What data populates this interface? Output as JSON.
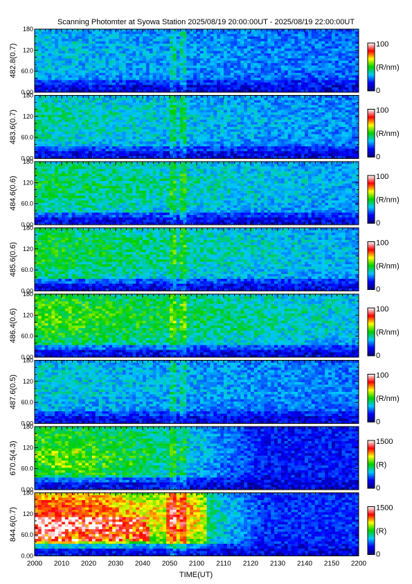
{
  "title": "Scanning Photomter at Syowa Station 2025/08/19 20:00:00UT - 2025/08/19 22:00:00UT",
  "chart_data": {
    "type": "heatmap",
    "xlabel": "TIME(UT)",
    "x_ticks": [
      "2000",
      "2010",
      "2020",
      "2030",
      "2040",
      "2050",
      "2100",
      "2110",
      "2120",
      "2130",
      "2140",
      "2150",
      "2200"
    ],
    "y_ticks": [
      "0.00",
      "60.0",
      "120",
      "180"
    ],
    "ylim": [
      0,
      180
    ],
    "colorscale": [
      "#00007a",
      "#0000ff",
      "#00c8ff",
      "#00d000",
      "#ffff00",
      "#ff0000",
      "#ffffff"
    ],
    "panels": [
      {
        "ylabel": "482.8(0.7)",
        "cbar_max": "100",
        "cbar_min": "0",
        "unit": "(R/nm)",
        "intensity": 0.3
      },
      {
        "ylabel": "483.6(0.7)",
        "cbar_max": "100",
        "cbar_min": "0",
        "unit": "(R/nm)",
        "intensity": 0.38
      },
      {
        "ylabel": "484.6(0.6)",
        "cbar_max": "100",
        "cbar_min": "0",
        "unit": "(R/nm)",
        "intensity": 0.45
      },
      {
        "ylabel": "485.6(0.6)",
        "cbar_max": "100",
        "cbar_min": "0",
        "unit": "(R/nm)",
        "intensity": 0.48
      },
      {
        "ylabel": "486.4(0.6)",
        "cbar_max": "100",
        "cbar_min": "0",
        "unit": "(R/nm)",
        "intensity": 0.55
      },
      {
        "ylabel": "487.6(0.5)",
        "cbar_max": "100",
        "cbar_min": "0",
        "unit": "(R/nm)",
        "intensity": 0.33
      },
      {
        "ylabel": "670.5(4.3)",
        "cbar_max": "1500",
        "cbar_min": "0",
        "unit": "(R)",
        "intensity": 0.52
      },
      {
        "ylabel": "844.6(0.7)",
        "cbar_max": "1500",
        "cbar_min": "0",
        "unit": "(R)",
        "intensity": 0.85
      }
    ]
  }
}
